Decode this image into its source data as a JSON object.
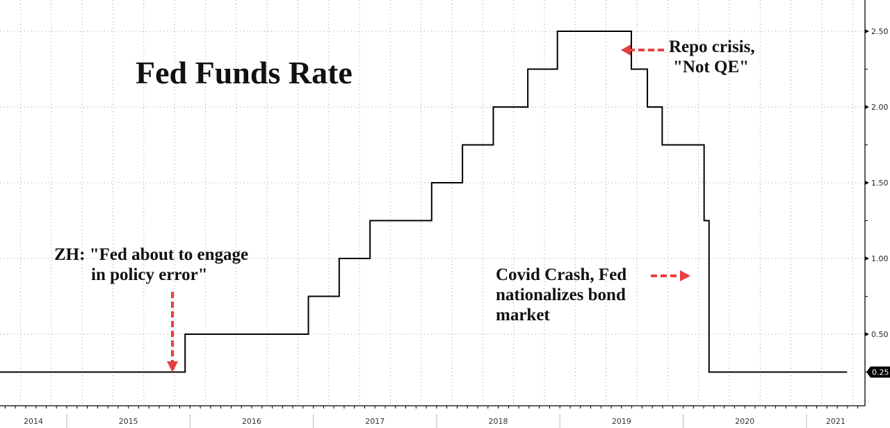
{
  "chart_data": {
    "type": "line",
    "step": true,
    "title": "Fed Funds Rate",
    "xlabel": "",
    "ylabel": "",
    "xlim": [
      2013.46,
      2021.5
    ],
    "ylim": [
      0,
      2.7
    ],
    "grid": true,
    "y_axis_side": "right",
    "y_ticks": [
      "0.50",
      "1.00",
      "1.50",
      "2.00",
      "2.50"
    ],
    "y_tick_values": [
      0.5,
      1.0,
      1.5,
      2.0,
      2.5
    ],
    "last_value_label": "0.25",
    "last_value": 0.25,
    "x_tick_labels": [
      "2014",
      "2015",
      "2016",
      "2017",
      "2018",
      "2019",
      "2020",
      "2021"
    ],
    "series": [
      {
        "name": "Fed Funds Rate",
        "color": "#000000",
        "x": [
          2013.46,
          2015.96,
          2016.96,
          2017.21,
          2017.46,
          2017.96,
          2018.21,
          2018.46,
          2018.74,
          2018.98,
          2019.58,
          2019.71,
          2019.83,
          2020.17,
          2020.21,
          2021.33
        ],
        "values": [
          0.25,
          0.5,
          0.75,
          1.0,
          1.25,
          1.5,
          1.75,
          2.0,
          2.25,
          2.5,
          2.25,
          2.0,
          1.75,
          1.25,
          0.25,
          0.25
        ]
      }
    ],
    "annotations": [
      {
        "id": "zh",
        "lines": [
          "ZH: \"Fed about to engage",
          "in policy error\""
        ],
        "arrow": "down"
      },
      {
        "id": "repo",
        "lines": [
          "Repo crisis,",
          "\"Not QE\""
        ],
        "arrow": "left"
      },
      {
        "id": "covid",
        "lines": [
          "Covid Crash, Fed",
          "nationalizes bond",
          "market"
        ],
        "arrow": "right"
      }
    ],
    "arrow_color": "#e8403f"
  }
}
